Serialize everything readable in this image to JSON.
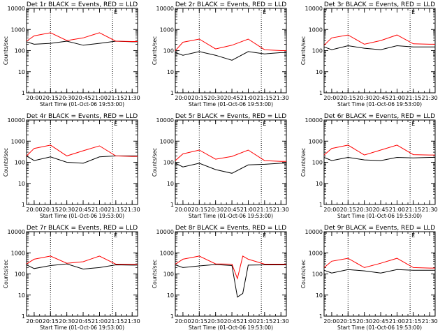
{
  "shared": {
    "ylabel": "Counts/sec",
    "xlabel": "Start Time (01-Oct-06 19:53:00)",
    "xticks": [
      {
        "t": 20.0,
        "label": "20:00"
      },
      {
        "t": 20.25,
        "label": "20:15"
      },
      {
        "t": 20.5,
        "label": "20:30"
      },
      {
        "t": 20.75,
        "label": "20:45"
      },
      {
        "t": 21.0,
        "label": "21:00"
      },
      {
        "t": 21.25,
        "label": "21:15"
      },
      {
        "t": 21.5,
        "label": "21:30"
      }
    ],
    "yticks": [
      {
        "v": 1,
        "label": "1"
      },
      {
        "v": 10,
        "label": "10"
      },
      {
        "v": 100,
        "label": "100"
      },
      {
        "v": 1000,
        "label": "1000"
      },
      {
        "v": 10000,
        "label": "10000"
      }
    ],
    "xlim": [
      "19:53",
      "21:35"
    ],
    "ylim": [
      1,
      10000
    ],
    "yscale": "log",
    "vlines": [
      "20:15",
      "21:12"
    ],
    "marker": "E",
    "colors": {
      "events": "#000000",
      "lld": "#ff0000"
    }
  },
  "chart_data": [
    {
      "type": "line",
      "title": "Det 1r BLACK = Events, RED = LLD",
      "xlabel": "Start Time (01-Oct-06 19:53:00)",
      "ylabel": "Counts/sec",
      "yscale": "log",
      "ylim": [
        1,
        10000
      ],
      "series": [
        {
          "color": "black",
          "t": [
            "19:53",
            "20:00",
            "20:15",
            "20:30",
            "20:45",
            "21:00",
            "21:15",
            "21:30",
            "21:35"
          ],
          "values": [
            260,
            200,
            220,
            280,
            180,
            220,
            280,
            260,
            260
          ]
        },
        {
          "color": "red",
          "t": [
            "19:53",
            "20:00",
            "20:15",
            "20:30",
            "20:45",
            "21:00",
            "21:15",
            "21:30",
            "21:35"
          ],
          "values": [
            280,
            500,
            700,
            300,
            400,
            700,
            280,
            270,
            270
          ]
        }
      ]
    },
    {
      "type": "line",
      "title": "Det 2r BLACK = Events, RED = LLD",
      "xlabel": "Start Time (01-Oct-06 19:53:00)",
      "ylabel": "Counts/sec",
      "yscale": "log",
      "ylim": [
        1,
        10000
      ],
      "series": [
        {
          "color": "black",
          "t": [
            "19:53",
            "20:00",
            "20:15",
            "20:30",
            "20:45",
            "21:00",
            "21:15",
            "21:30",
            "21:35"
          ],
          "values": [
            80,
            60,
            90,
            60,
            35,
            90,
            70,
            80,
            80
          ]
        },
        {
          "color": "red",
          "t": [
            "19:53",
            "20:00",
            "20:15",
            "20:30",
            "20:45",
            "21:00",
            "21:15",
            "21:30",
            "21:35"
          ],
          "values": [
            100,
            250,
            350,
            120,
            180,
            350,
            110,
            100,
            100
          ]
        }
      ]
    },
    {
      "type": "line",
      "title": "Det 3r BLACK = Events, RED = LLD",
      "xlabel": "Start Time (01-Oct-06 19:53:00)",
      "ylabel": "Counts/sec",
      "yscale": "log",
      "ylim": [
        1,
        10000
      ],
      "series": [
        {
          "color": "black",
          "t": [
            "19:53",
            "20:00",
            "20:15",
            "20:30",
            "20:45",
            "21:00",
            "21:15",
            "21:30",
            "21:35"
          ],
          "values": [
            150,
            110,
            170,
            130,
            110,
            170,
            150,
            150,
            150
          ]
        },
        {
          "color": "red",
          "t": [
            "19:53",
            "20:00",
            "20:15",
            "20:30",
            "20:45",
            "21:00",
            "21:15",
            "21:30",
            "21:35"
          ],
          "values": [
            180,
            400,
            550,
            200,
            300,
            550,
            210,
            200,
            200
          ]
        }
      ]
    },
    {
      "type": "line",
      "title": "Det 4r BLACK = Events, RED = LLD",
      "xlabel": "Start Time (01-Oct-06 19:53:00)",
      "ylabel": "Counts/sec",
      "yscale": "log",
      "ylim": [
        1,
        10000
      ],
      "series": [
        {
          "color": "black",
          "t": [
            "19:53",
            "20:00",
            "20:15",
            "20:30",
            "20:45",
            "21:00",
            "21:15",
            "21:30",
            "21:35"
          ],
          "values": [
            200,
            120,
            180,
            100,
            90,
            180,
            200,
            200,
            200
          ]
        },
        {
          "color": "red",
          "t": [
            "19:53",
            "20:00",
            "20:15",
            "20:30",
            "20:45",
            "21:00",
            "21:15",
            "21:30",
            "21:35"
          ],
          "values": [
            200,
            450,
            650,
            200,
            350,
            600,
            200,
            190,
            190
          ]
        }
      ]
    },
    {
      "type": "line",
      "title": "Det 5r BLACK = Events, RED = LLD",
      "xlabel": "Start Time (01-Oct-06 19:53:00)",
      "ylabel": "Counts/sec",
      "yscale": "log",
      "ylim": [
        1,
        10000
      ],
      "series": [
        {
          "color": "black",
          "t": [
            "19:53",
            "20:00",
            "20:15",
            "20:30",
            "20:45",
            "21:00",
            "21:15",
            "21:30",
            "21:35"
          ],
          "values": [
            90,
            60,
            90,
            45,
            30,
            75,
            80,
            90,
            90
          ]
        },
        {
          "color": "red",
          "t": [
            "19:53",
            "20:00",
            "20:15",
            "20:30",
            "20:45",
            "21:00",
            "21:15",
            "21:30",
            "21:35"
          ],
          "values": [
            120,
            250,
            380,
            140,
            190,
            380,
            120,
            110,
            110
          ]
        }
      ]
    },
    {
      "type": "line",
      "title": "Det 6r BLACK = Events, RED = LLD",
      "xlabel": "Start Time (01-Oct-06 19:53:00)",
      "ylabel": "Counts/sec",
      "yscale": "log",
      "ylim": [
        1,
        10000
      ],
      "series": [
        {
          "color": "black",
          "t": [
            "19:53",
            "20:00",
            "20:15",
            "20:30",
            "20:45",
            "21:00",
            "21:15",
            "21:30",
            "21:35"
          ],
          "values": [
            170,
            120,
            170,
            130,
            120,
            170,
            160,
            170,
            170
          ]
        },
        {
          "color": "red",
          "t": [
            "19:53",
            "20:00",
            "20:15",
            "20:30",
            "20:45",
            "21:00",
            "21:15",
            "21:30",
            "21:35"
          ],
          "values": [
            220,
            450,
            650,
            220,
            380,
            650,
            230,
            220,
            220
          ]
        }
      ]
    },
    {
      "type": "line",
      "title": "Det 7r BLACK = Events, RED = LLD",
      "xlabel": "Start Time (01-Oct-06 19:53:00)",
      "ylabel": "Counts/sec",
      "yscale": "log",
      "ylim": [
        1,
        10000
      ],
      "series": [
        {
          "color": "black",
          "t": [
            "19:53",
            "20:00",
            "20:15",
            "20:30",
            "20:45",
            "21:00",
            "21:15",
            "21:30",
            "21:35"
          ],
          "values": [
            270,
            180,
            250,
            300,
            170,
            200,
            270,
            260,
            260
          ]
        },
        {
          "color": "red",
          "t": [
            "19:53",
            "20:00",
            "20:15",
            "20:30",
            "20:45",
            "21:00",
            "21:15",
            "21:30",
            "21:35"
          ],
          "values": [
            300,
            500,
            700,
            320,
            380,
            700,
            290,
            290,
            290
          ]
        }
      ]
    },
    {
      "type": "line",
      "title": "Det 8r BLACK = Events, RED = LLD",
      "xlabel": "Start Time (01-Oct-06 19:53:00)",
      "ylabel": "Counts/sec",
      "yscale": "log",
      "ylim": [
        1,
        10000
      ],
      "series": [
        {
          "color": "black",
          "t": [
            "19:53",
            "20:00",
            "20:15",
            "20:30",
            "20:45",
            "20:50",
            "20:55",
            "21:00",
            "21:15",
            "21:30",
            "21:35"
          ],
          "values": [
            270,
            200,
            240,
            280,
            250,
            8,
            12,
            260,
            270,
            270,
            270
          ]
        },
        {
          "color": "red",
          "t": [
            "19:53",
            "20:00",
            "20:15",
            "20:30",
            "20:45",
            "20:50",
            "20:55",
            "21:00",
            "21:15",
            "21:30",
            "21:35"
          ],
          "values": [
            290,
            500,
            700,
            300,
            290,
            60,
            700,
            500,
            290,
            290,
            290
          ]
        }
      ]
    },
    {
      "type": "line",
      "title": "Det 9r BLACK = Events, RED = LLD",
      "xlabel": "Start Time (01-Oct-06 19:53:00)",
      "ylabel": "Counts/sec",
      "yscale": "log",
      "ylim": [
        1,
        10000
      ],
      "series": [
        {
          "color": "black",
          "t": [
            "19:53",
            "20:00",
            "20:15",
            "20:30",
            "20:45",
            "21:00",
            "21:15",
            "21:30",
            "21:35"
          ],
          "values": [
            150,
            110,
            160,
            140,
            110,
            160,
            150,
            150,
            150
          ]
        },
        {
          "color": "red",
          "t": [
            "19:53",
            "20:00",
            "20:15",
            "20:30",
            "20:45",
            "21:00",
            "21:15",
            "21:30",
            "21:35"
          ],
          "values": [
            200,
            400,
            550,
            200,
            320,
            550,
            200,
            190,
            190
          ]
        }
      ]
    }
  ]
}
